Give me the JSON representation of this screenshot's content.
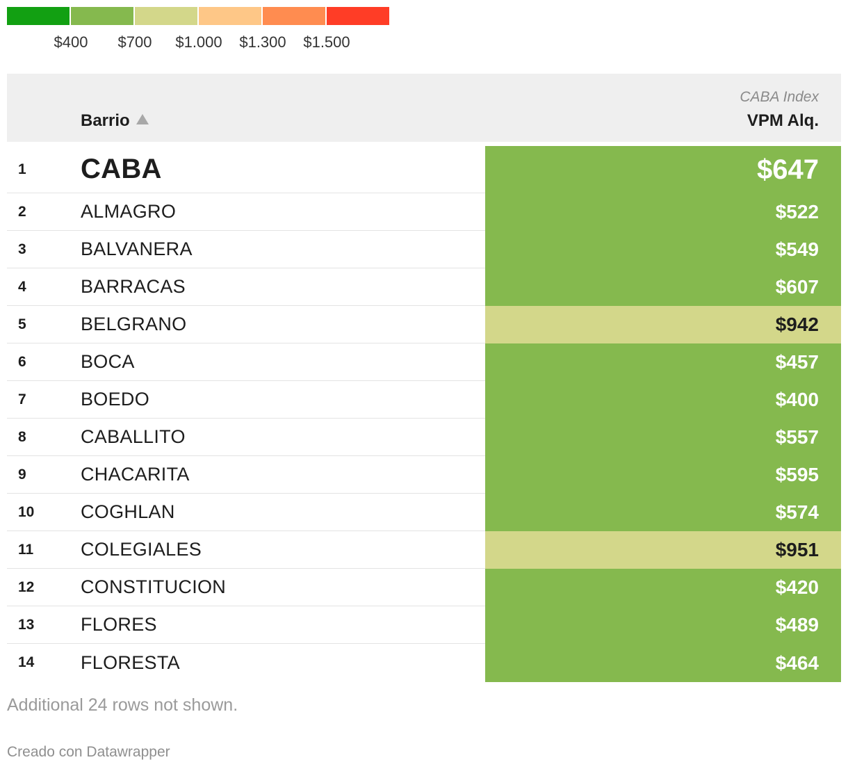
{
  "legend": {
    "colors": [
      "#12a012",
      "#85b94e",
      "#d3d78a",
      "#fec787",
      "#ff8c50",
      "#ff3d26"
    ],
    "labels": [
      "$400",
      "$700",
      "$1.000",
      "$1.300",
      "$1.500"
    ]
  },
  "header": {
    "barrio": "Barrio",
    "supra": "CABA Index",
    "value": "VPM Alq."
  },
  "rows": [
    {
      "rank": "1",
      "name": "CABA",
      "value": "$647",
      "color": "#85b94e"
    },
    {
      "rank": "2",
      "name": "ALMAGRO",
      "value": "$522",
      "color": "#85b94e"
    },
    {
      "rank": "3",
      "name": "BALVANERA",
      "value": "$549",
      "color": "#85b94e"
    },
    {
      "rank": "4",
      "name": "BARRACAS",
      "value": "$607",
      "color": "#85b94e"
    },
    {
      "rank": "5",
      "name": "BELGRANO",
      "value": "$942",
      "color": "#d3d78a"
    },
    {
      "rank": "6",
      "name": "BOCA",
      "value": "$457",
      "color": "#85b94e"
    },
    {
      "rank": "7",
      "name": "BOEDO",
      "value": "$400",
      "color": "#85b94e"
    },
    {
      "rank": "8",
      "name": "CABALLITO",
      "value": "$557",
      "color": "#85b94e"
    },
    {
      "rank": "9",
      "name": "CHACARITA",
      "value": "$595",
      "color": "#85b94e"
    },
    {
      "rank": "10",
      "name": "COGHLAN",
      "value": "$574",
      "color": "#85b94e"
    },
    {
      "rank": "11",
      "name": "COLEGIALES",
      "value": "$951",
      "color": "#d3d78a"
    },
    {
      "rank": "12",
      "name": "CONSTITUCION",
      "value": "$420",
      "color": "#85b94e"
    },
    {
      "rank": "13",
      "name": "FLORES",
      "value": "$489",
      "color": "#85b94e"
    },
    {
      "rank": "14",
      "name": "FLORESTA",
      "value": "$464",
      "color": "#85b94e"
    }
  ],
  "footer": {
    "note": "Additional 24 rows not shown.",
    "credit": "Creado con Datawrapper"
  }
}
